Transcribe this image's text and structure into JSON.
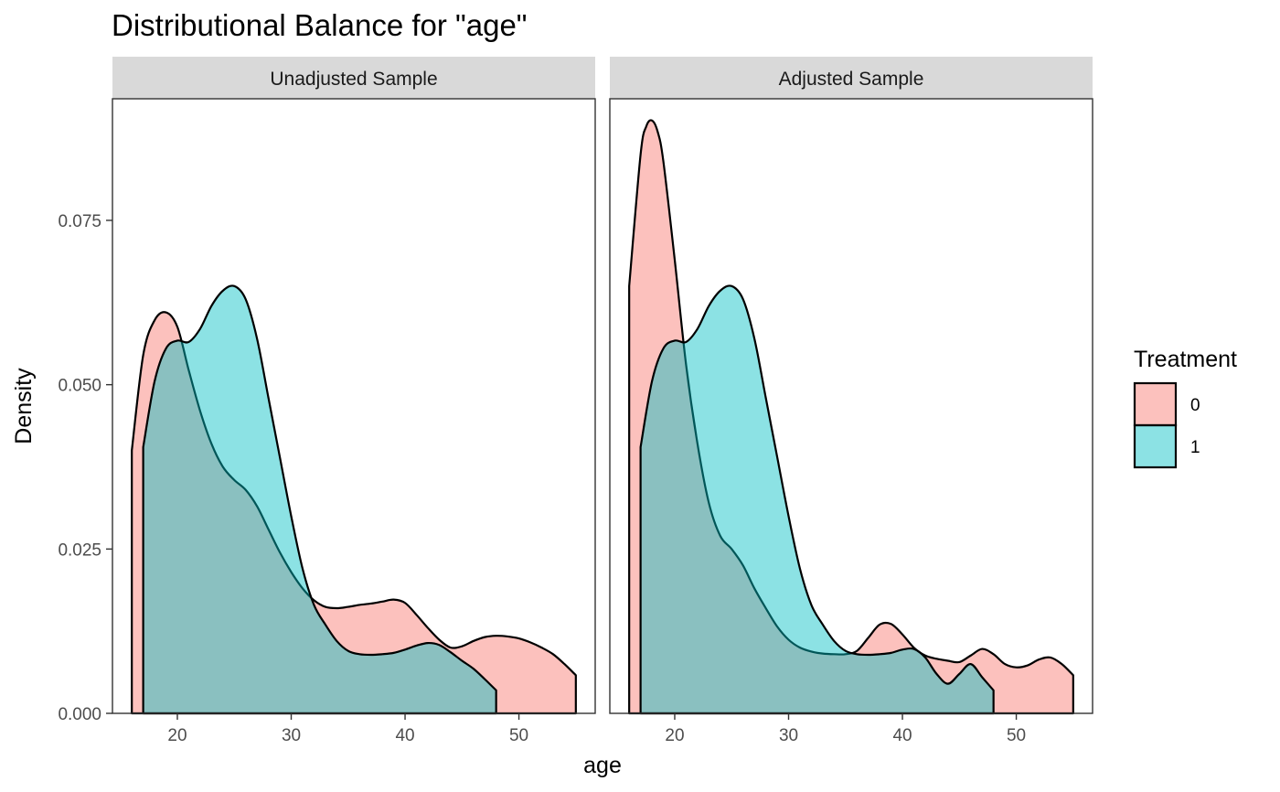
{
  "chart_data": {
    "type": "area",
    "title": "Distributional Balance for \"age\"",
    "xlabel": "age",
    "ylabel": "Density",
    "xlim": [
      14.3,
      56.7
    ],
    "ylim": [
      0,
      0.0935
    ],
    "x_ticks": [
      20,
      30,
      40,
      50
    ],
    "y_ticks": [
      0,
      0.025,
      0.05,
      0.075
    ],
    "y_tick_labels": [
      "0.000",
      "0.025",
      "0.050",
      "0.075"
    ],
    "grid": false,
    "legend": {
      "title": "Treatment",
      "placement": "right",
      "entries": [
        {
          "label": "0",
          "color": "#F8766D"
        },
        {
          "label": "1",
          "color": "#00BFC4"
        }
      ]
    },
    "fill_alpha": 0.45,
    "panels": [
      {
        "label": "Unadjusted Sample",
        "series": [
          {
            "name": "0",
            "color": "#F8766D",
            "x": [
              16,
              17,
              18,
              19,
              20,
              21,
              22,
              23,
              24,
              25,
              26,
              27,
              28,
              29,
              30,
              31,
              32,
              33,
              34,
              35,
              36,
              37,
              38,
              39,
              40,
              41,
              42,
              43,
              44,
              45,
              46,
              47,
              48,
              49,
              50,
              51,
              52,
              53,
              54,
              55
            ],
            "y": [
              0.04,
              0.0545,
              0.0598,
              0.061,
              0.0588,
              0.0522,
              0.046,
              0.041,
              0.0375,
              0.0355,
              0.034,
              0.0315,
              0.028,
              0.0245,
              0.0215,
              0.019,
              0.0172,
              0.0162,
              0.016,
              0.0162,
              0.0165,
              0.0167,
              0.017,
              0.0173,
              0.0168,
              0.015,
              0.013,
              0.0112,
              0.01,
              0.0102,
              0.011,
              0.0116,
              0.0118,
              0.0117,
              0.0114,
              0.0108,
              0.01,
              0.009,
              0.0075,
              0.0058
            ]
          },
          {
            "name": "1",
            "color": "#00BFC4",
            "x": [
              17,
              18,
              19,
              20,
              21,
              22,
              23,
              24,
              25,
              26,
              27,
              28,
              29,
              30,
              31,
              32,
              33,
              34,
              35,
              36,
              37,
              38,
              39,
              40,
              41,
              42,
              43,
              44,
              45,
              46,
              47,
              48
            ],
            "y": [
              0.0405,
              0.0505,
              0.0555,
              0.0567,
              0.0565,
              0.0585,
              0.062,
              0.0643,
              0.065,
              0.063,
              0.057,
              0.048,
              0.039,
              0.03,
              0.022,
              0.0165,
              0.0135,
              0.011,
              0.0095,
              0.009,
              0.0089,
              0.009,
              0.0092,
              0.0097,
              0.0103,
              0.0107,
              0.0104,
              0.0093,
              0.008,
              0.0068,
              0.0052,
              0.0035
            ]
          }
        ]
      },
      {
        "label": "Adjusted Sample",
        "series": [
          {
            "name": "0",
            "color": "#F8766D",
            "x": [
              16,
              17,
              17.5,
              18,
              18.5,
              19,
              20,
              21,
              22,
              23,
              24,
              25,
              26,
              27,
              28,
              29,
              30,
              31,
              32,
              33,
              34,
              35,
              36,
              37,
              38,
              39,
              40,
              41,
              42,
              43,
              44,
              45,
              46,
              47,
              48,
              49,
              50,
              51,
              52,
              53,
              54,
              55
            ],
            "y": [
              0.065,
              0.085,
              0.0893,
              0.0902,
              0.0885,
              0.084,
              0.069,
              0.053,
              0.041,
              0.032,
              0.027,
              0.025,
              0.0225,
              0.019,
              0.016,
              0.0132,
              0.0112,
              0.01,
              0.0094,
              0.0091,
              0.009,
              0.009,
              0.0095,
              0.0115,
              0.0135,
              0.0136,
              0.012,
              0.01,
              0.0088,
              0.0083,
              0.008,
              0.0078,
              0.0088,
              0.0098,
              0.009,
              0.0075,
              0.007,
              0.0073,
              0.0082,
              0.0085,
              0.0075,
              0.0058
            ]
          },
          {
            "name": "1",
            "color": "#00BFC4",
            "x": [
              17,
              18,
              19,
              20,
              21,
              22,
              23,
              24,
              25,
              26,
              27,
              28,
              29,
              30,
              31,
              32,
              33,
              34,
              35,
              36,
              37,
              38,
              39,
              40,
              41,
              42,
              43,
              44,
              45,
              46,
              47,
              48
            ],
            "y": [
              0.0405,
              0.0505,
              0.0555,
              0.0567,
              0.0565,
              0.0585,
              0.062,
              0.0643,
              0.065,
              0.063,
              0.057,
              0.048,
              0.039,
              0.03,
              0.022,
              0.0165,
              0.0135,
              0.011,
              0.0095,
              0.009,
              0.0089,
              0.009,
              0.0092,
              0.0097,
              0.0098,
              0.0085,
              0.006,
              0.0045,
              0.006,
              0.0075,
              0.0055,
              0.0035
            ]
          }
        ]
      }
    ]
  }
}
